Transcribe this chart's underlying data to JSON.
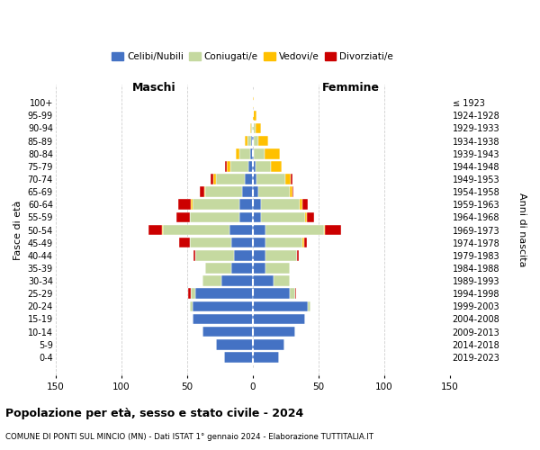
{
  "age_groups": [
    "0-4",
    "5-9",
    "10-14",
    "15-19",
    "20-24",
    "25-29",
    "30-34",
    "35-39",
    "40-44",
    "45-49",
    "50-54",
    "55-59",
    "60-64",
    "65-69",
    "70-74",
    "75-79",
    "80-84",
    "85-89",
    "90-94",
    "95-99",
    "100+"
  ],
  "birth_years": [
    "2019-2023",
    "2014-2018",
    "2009-2013",
    "2004-2008",
    "1999-2003",
    "1994-1998",
    "1989-1993",
    "1984-1988",
    "1979-1983",
    "1974-1978",
    "1969-1973",
    "1964-1968",
    "1959-1963",
    "1954-1958",
    "1949-1953",
    "1944-1948",
    "1939-1943",
    "1934-1938",
    "1929-1933",
    "1924-1928",
    "≤ 1923"
  ],
  "male": {
    "celibi": [
      22,
      28,
      38,
      46,
      46,
      44,
      24,
      16,
      14,
      16,
      18,
      10,
      10,
      8,
      6,
      3,
      2,
      1,
      0,
      0,
      0
    ],
    "coniugati": [
      0,
      0,
      0,
      0,
      2,
      3,
      14,
      20,
      30,
      32,
      50,
      38,
      36,
      28,
      22,
      14,
      8,
      3,
      1,
      0,
      0
    ],
    "vedovi": [
      0,
      0,
      0,
      0,
      0,
      0,
      0,
      0,
      0,
      0,
      1,
      0,
      1,
      1,
      2,
      3,
      3,
      2,
      1,
      0,
      0
    ],
    "divorziati": [
      0,
      0,
      0,
      0,
      0,
      2,
      0,
      0,
      1,
      8,
      10,
      10,
      10,
      3,
      2,
      1,
      0,
      0,
      0,
      0,
      0
    ]
  },
  "female": {
    "nubili": [
      20,
      24,
      32,
      40,
      42,
      28,
      16,
      10,
      10,
      10,
      10,
      6,
      6,
      4,
      3,
      2,
      1,
      1,
      0,
      0,
      0
    ],
    "coniugate": [
      0,
      0,
      0,
      0,
      2,
      4,
      12,
      18,
      24,
      28,
      44,
      34,
      30,
      24,
      22,
      12,
      8,
      3,
      2,
      0,
      0
    ],
    "vedove": [
      0,
      0,
      0,
      0,
      0,
      0,
      0,
      0,
      0,
      1,
      1,
      1,
      2,
      2,
      4,
      8,
      12,
      8,
      4,
      3,
      1
    ],
    "divorziate": [
      0,
      0,
      0,
      0,
      0,
      1,
      0,
      0,
      1,
      2,
      12,
      6,
      4,
      1,
      1,
      0,
      0,
      0,
      0,
      0,
      0
    ]
  },
  "colors": {
    "celibi": "#4472c4",
    "coniugati": "#c5d9a0",
    "vedovi": "#ffc000",
    "divorziati": "#cc0000"
  },
  "xlim": 150,
  "title": "Popolazione per età, sesso e stato civile - 2024",
  "subtitle": "COMUNE DI PONTI SUL MINCIO (MN) - Dati ISTAT 1° gennaio 2024 - Elaborazione TUTTITALIA.IT",
  "xlabel_left": "Maschi",
  "xlabel_right": "Femmine",
  "ylabel": "Fasce di età",
  "ylabel_right": "Anni di nascita",
  "bg_color": "#ffffff",
  "grid_color": "#bbbbbb"
}
